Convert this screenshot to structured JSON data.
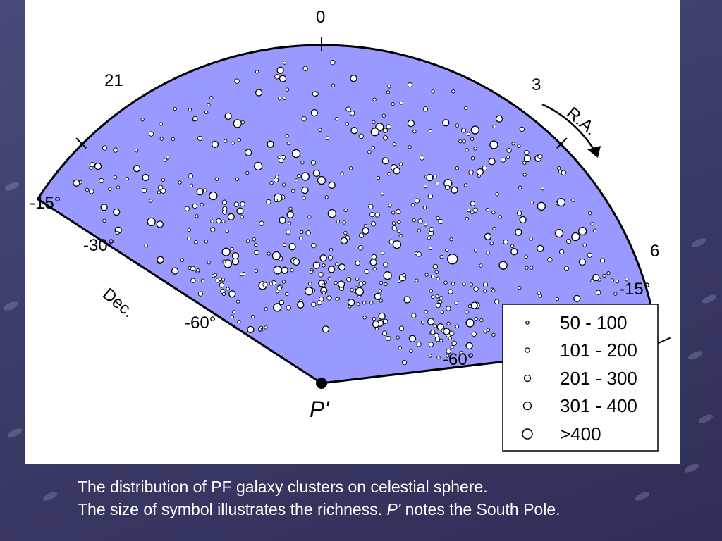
{
  "chart_data": {
    "type": "scatter",
    "projection": "polar sky map, South Pole at centre",
    "center_marker": "P'",
    "ra_labels": [
      "21",
      "0",
      "3",
      "6"
    ],
    "ra_axis_label": "R.A.",
    "dec_labels_left": [
      "-15°",
      "-30°",
      "-60°"
    ],
    "dec_labels_right": [
      "-15°",
      "-60°"
    ],
    "dec_axis_label": "Dec.",
    "legend": [
      "50 - 100",
      "101 - 200",
      "201 - 300",
      "301 - 400",
      ">400"
    ],
    "legend_placement": "bottom-right",
    "colors": {
      "sky": "#9999ff",
      "point_fill": "#ffffff",
      "point_edge": "#000000",
      "background": "#3d3d6c"
    },
    "points": [
      {
        "ra": 23.5,
        "dec": -20,
        "rich": 3
      },
      {
        "ra": 0.4,
        "dec": -22,
        "rich": 3
      },
      {
        "ra": 1.1,
        "dec": -21,
        "rich": 2
      },
      {
        "ra": 22.3,
        "dec": -25,
        "rich": 2
      },
      {
        "ra": 0.0,
        "dec": -45,
        "rich": 4
      },
      {
        "ra": 23.7,
        "dec": -44,
        "rich": 4
      },
      {
        "ra": 0.2,
        "dec": -46,
        "rich": 3
      },
      {
        "ra": 2.3,
        "dec": -38,
        "rich": 3
      },
      {
        "ra": 4.0,
        "dec": -25,
        "rich": 4
      },
      {
        "ra": 21.3,
        "dec": -30,
        "rich": 3
      },
      {
        "ra": 22.7,
        "dec": -60,
        "rich": 4
      },
      {
        "ra": 1.9,
        "dec": -55,
        "rich": 4
      },
      {
        "ra": 3.1,
        "dec": -50,
        "rich": 5
      },
      {
        "ra": 0.8,
        "dec": -33,
        "rich": 4
      },
      {
        "ra": 4.8,
        "dec": -45,
        "rich": 4
      },
      {
        "ra": 20.5,
        "dec": -45,
        "rich": 3
      },
      {
        "ra": 22.0,
        "dec": -42,
        "rich": 4
      },
      {
        "ra": 1.5,
        "dec": -68,
        "rich": 4
      },
      {
        "ra": 23.0,
        "dec": -72,
        "rich": 3
      },
      {
        "ra": 5.5,
        "dec": -32,
        "rich": 3
      },
      {
        "ra": 3.5,
        "dec": -35,
        "rich": 3
      },
      {
        "ra": 2.5,
        "dec": -28,
        "rich": 3
      },
      {
        "ra": 22.4,
        "dec": -32,
        "rich": 3
      },
      {
        "ra": 21.6,
        "dec": -54,
        "rich": 4
      },
      {
        "ra": 20.9,
        "dec": -38,
        "rich": 4
      },
      {
        "ra": 0.6,
        "dec": -58,
        "rich": 3
      },
      {
        "ra": 23.3,
        "dec": -52,
        "rich": 3
      },
      {
        "ra": 2.8,
        "dec": -70,
        "rich": 3
      },
      {
        "ra": 4.5,
        "dec": -60,
        "rich": 3
      },
      {
        "ra": 21.0,
        "dec": -62,
        "rich": 3
      },
      {
        "ra": 1.3,
        "dec": -40,
        "rich": 3
      },
      {
        "ra": 23.9,
        "dec": -30,
        "rich": 3
      },
      {
        "ra": 5.2,
        "dec": -22,
        "rich": 3
      },
      {
        "ra": 3.8,
        "dec": -42,
        "rich": 4
      },
      {
        "ra": 22.1,
        "dec": -48,
        "rich": 3
      },
      {
        "ra": 0.3,
        "dec": -78,
        "rich": 3
      },
      {
        "ra": 1.7,
        "dec": -26,
        "rich": 3
      },
      {
        "ra": 20.6,
        "dec": -28,
        "rich": 3
      },
      {
        "ra": 4.2,
        "dec": -52,
        "rich": 3
      },
      {
        "ra": 2.1,
        "dec": -62,
        "rich": 4
      }
    ],
    "background_point_count": 540
  },
  "caption": {
    "line1": "The distribution  of PF galaxy clusters  on celestial sphere.",
    "line2_pre": "The size of symbol illustrates the richness. ",
    "line2_pole": "P'",
    "line2_post": " notes the South Pole."
  }
}
